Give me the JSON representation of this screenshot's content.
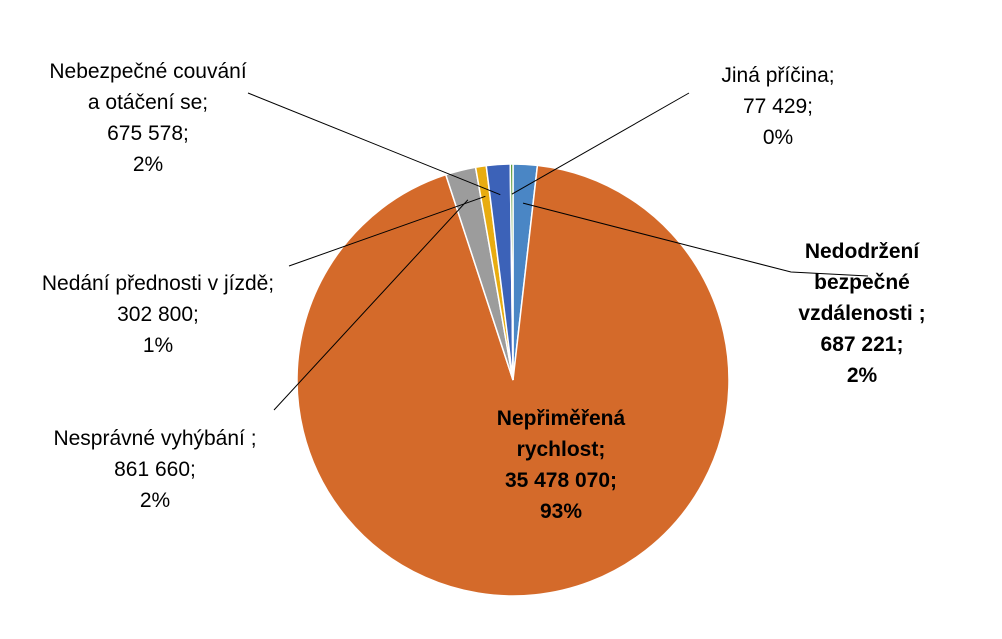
{
  "chart_data": {
    "type": "pie",
    "title": "",
    "slices": [
      {
        "name": "Nedodržení bezpečné vzdálenosti ;",
        "value": 687221,
        "value_label": "687 221;",
        "percent_label": "2%",
        "color": "#4a86c5"
      },
      {
        "name": "Nepřiměřená rychlost;",
        "value": 35478070,
        "value_label": "35 478 070;",
        "percent_label": "93%",
        "color": "#d46a2a"
      },
      {
        "name": "Nesprávné vyhýbání ;",
        "value": 861660,
        "value_label": "861 660;",
        "percent_label": "2%",
        "color": "#9c9c9c"
      },
      {
        "name": "Nedání přednosti v jízdě;",
        "value": 302800,
        "value_label": "302 800;",
        "percent_label": "1%",
        "color": "#e8ac10"
      },
      {
        "name": "Nebezpečné couvání a otáčení se;",
        "value": 675578,
        "value_label": "675 578;",
        "percent_label": "2%",
        "color": "#3c62b8"
      },
      {
        "name": "Jiná příčina;",
        "value": 77429,
        "value_label": "77 429;",
        "percent_label": "0%",
        "color": "#5a9a3a"
      }
    ]
  }
}
